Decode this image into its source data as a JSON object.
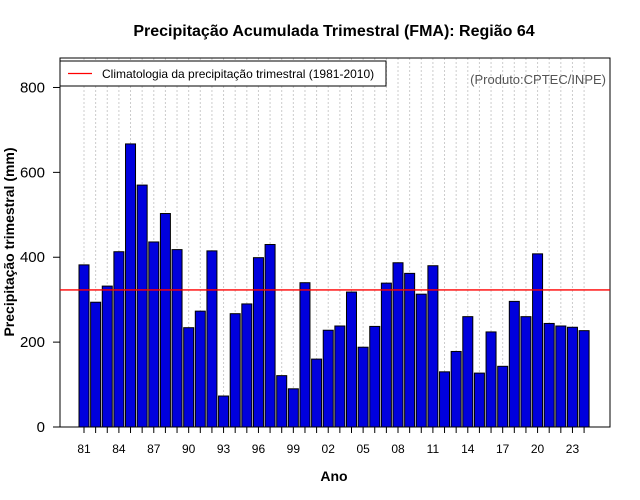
{
  "chart_data": {
    "type": "bar",
    "title": "Precipitação Acumulada Trimestral (FMA): Região 64",
    "xlabel": "Ano",
    "ylabel": "Precipitação trimestral (mm)",
    "credit": "(Produto:CPTEC/INPE)",
    "legend": {
      "label": "Climatologia da precipitação trimestral (1981-2010)",
      "position": "top-left"
    },
    "climatology": 323,
    "ylim": [
      0,
      870
    ],
    "yticks": [
      0,
      200,
      400,
      600,
      800
    ],
    "x_tick_labels": [
      "81",
      "84",
      "87",
      "90",
      "93",
      "96",
      "99",
      "02",
      "05",
      "08",
      "11",
      "14",
      "17",
      "20",
      "23"
    ],
    "x_tick_every": 3,
    "categories": [
      "1981",
      "1982",
      "1983",
      "1984",
      "1985",
      "1986",
      "1987",
      "1988",
      "1989",
      "1990",
      "1991",
      "1992",
      "1993",
      "1994",
      "1995",
      "1996",
      "1997",
      "1998",
      "1999",
      "2000",
      "2001",
      "2002",
      "2003",
      "2004",
      "2005",
      "2006",
      "2007",
      "2008",
      "2009",
      "2010",
      "2011",
      "2012",
      "2013",
      "2014",
      "2015",
      "2016",
      "2017",
      "2018",
      "2019",
      "2020",
      "2021",
      "2022",
      "2023",
      "2024"
    ],
    "values": [
      382,
      294,
      332,
      413,
      667,
      570,
      436,
      503,
      418,
      234,
      273,
      415,
      73,
      267,
      290,
      399,
      430,
      121,
      90,
      340,
      160,
      228,
      238,
      318,
      188,
      237,
      339,
      387,
      362,
      313,
      380,
      130,
      178,
      260,
      127,
      224,
      143,
      296,
      260,
      408,
      244,
      238,
      235,
      227
    ],
    "colors": {
      "bar": "#0000dd",
      "bar_edge": "#000000",
      "climatology_line": "#ff0000",
      "grid": "#cccccc"
    }
  }
}
